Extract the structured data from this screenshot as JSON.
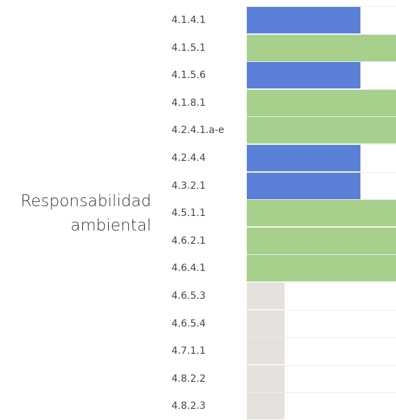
{
  "chart_data": {
    "type": "bar",
    "group_label": "Responsabilidad ambiental",
    "categories": [
      "4.1.4.1",
      "4.1.5.1",
      "4.1.5.6",
      "4.1.8.1",
      "4.2.4.1.a-e",
      "4.2.4.4",
      "4.3.2.1",
      "4.5.1.1",
      "4.6.2.1",
      "4.6.4.1",
      "4.6.5.3",
      "4.6.5.4",
      "4.7.1.1",
      "4.8.2.2",
      "4.8.2.3"
    ],
    "values": [
      76,
      100,
      76,
      100,
      100,
      76,
      76,
      100,
      100,
      100,
      25,
      25,
      25,
      25,
      25
    ],
    "colors": [
      "#5b80d7",
      "#a7d08c",
      "#5b80d7",
      "#a7d08c",
      "#a7d08c",
      "#5b80d7",
      "#5b80d7",
      "#a7d08c",
      "#a7d08c",
      "#a7d08c",
      "#e5e1dd",
      "#e5e1dd",
      "#e5e1dd",
      "#e5e1dd",
      "#e5e1dd"
    ],
    "xlim": [
      0,
      100
    ]
  }
}
